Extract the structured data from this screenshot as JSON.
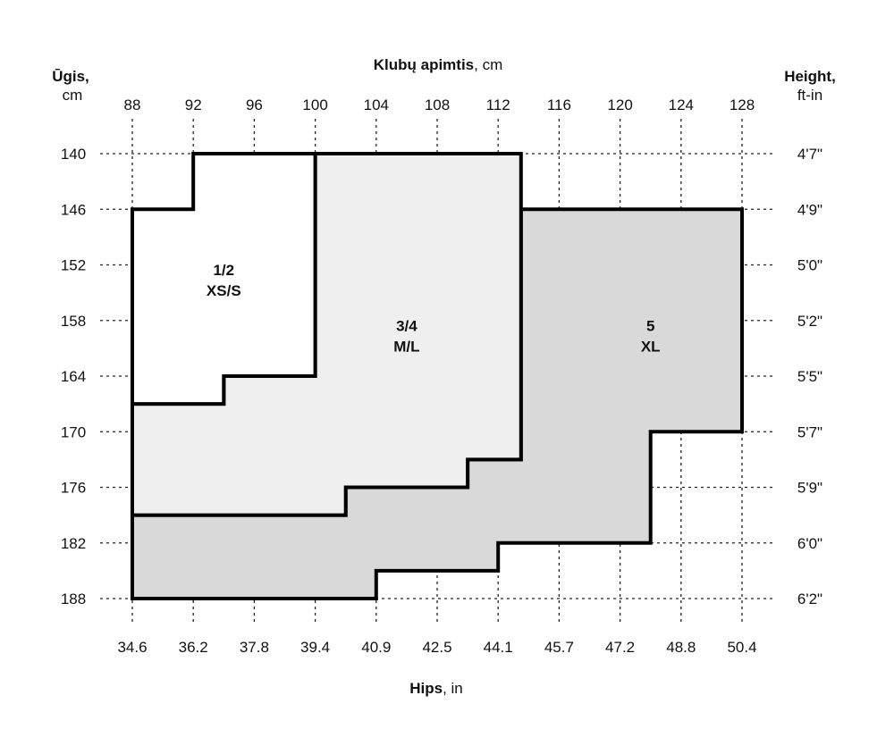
{
  "chart_data": {
    "type": "step-region",
    "titles": {
      "top_bold": "Klubų apimtis",
      "top_rest": ", cm",
      "bottom_bold": "Hips",
      "bottom_rest": ", in",
      "left_line1": "Ūgis,",
      "left_line2": "cm",
      "right_line1": "Height,",
      "right_line2": "ft-in"
    },
    "x_ticks_cm": [
      "88",
      "92",
      "96",
      "100",
      "104",
      "108",
      "112",
      "116",
      "120",
      "124",
      "128"
    ],
    "x_ticks_in": [
      "34.6",
      "36.2",
      "37.8",
      "39.4",
      "40.9",
      "42.5",
      "44.1",
      "45.7",
      "47.2",
      "48.8",
      "50.4"
    ],
    "y_ticks_cm": [
      "140",
      "146",
      "152",
      "158",
      "164",
      "170",
      "176",
      "182",
      "188"
    ],
    "y_ticks_ftin": [
      "4'7\"",
      "4'9\"",
      "5'0\"",
      "5'2\"",
      "5'5\"",
      "5'7\"",
      "5'9\"",
      "6'0\"",
      "6'2\""
    ],
    "x_range_cm": [
      88,
      128
    ],
    "y_range_cm": [
      140,
      188
    ],
    "grid": true,
    "regions": [
      {
        "label_line1": "5",
        "label_line2": "XL",
        "fill": "#d9d9d9",
        "label_at": [
          122,
          159.5
        ],
        "points": [
          [
            113.5,
            146
          ],
          [
            128,
            146
          ],
          [
            128,
            170
          ],
          [
            122,
            170
          ],
          [
            122,
            182
          ],
          [
            112,
            182
          ],
          [
            112,
            185
          ],
          [
            104,
            185
          ],
          [
            104,
            188
          ],
          [
            88,
            188
          ],
          [
            88,
            179
          ],
          [
            102,
            179
          ],
          [
            102,
            176
          ],
          [
            110,
            176
          ],
          [
            110,
            173
          ],
          [
            113.5,
            173
          ]
        ]
      },
      {
        "label_line1": "3/4",
        "label_line2": "M/L",
        "fill": "#efefef",
        "label_at": [
          106,
          159.5
        ],
        "points": [
          [
            100,
            140
          ],
          [
            113.5,
            140
          ],
          [
            113.5,
            173
          ],
          [
            110,
            173
          ],
          [
            110,
            176
          ],
          [
            102,
            176
          ],
          [
            102,
            179
          ],
          [
            88,
            179
          ],
          [
            88,
            167
          ],
          [
            94,
            167
          ],
          [
            94,
            164
          ],
          [
            100,
            164
          ]
        ]
      },
      {
        "label_line1": "1/2",
        "label_line2": "XS/S",
        "fill": "#ffffff",
        "label_at": [
          94,
          153.5
        ],
        "points": [
          [
            92,
            140
          ],
          [
            100,
            140
          ],
          [
            100,
            164
          ],
          [
            94,
            164
          ],
          [
            94,
            167
          ],
          [
            88,
            167
          ],
          [
            88,
            146
          ],
          [
            92,
            146
          ]
        ]
      }
    ]
  }
}
